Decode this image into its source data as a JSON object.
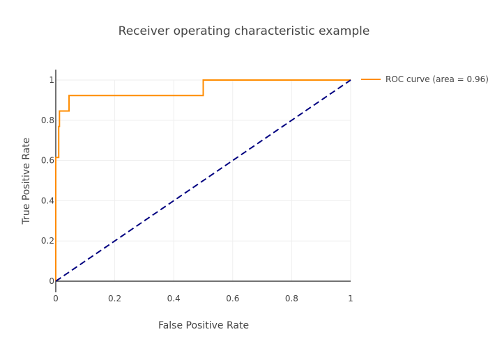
{
  "chart_data": {
    "type": "line",
    "title": "Receiver operating characteristic example",
    "xlabel": "False Positive Rate",
    "ylabel": "True Positive Rate",
    "xlim": [
      0,
      1
    ],
    "ylim": [
      0,
      1
    ],
    "x_ticks": [
      "0",
      "0.2",
      "0.4",
      "0.6",
      "0.8",
      "1"
    ],
    "y_ticks": [
      "0",
      "0.2",
      "0.4",
      "0.6",
      "0.8",
      "1"
    ],
    "grid": true,
    "legend_position": "top-right",
    "series": [
      {
        "name": "ROC curve (area = 0.96)",
        "color": "#ff8c00",
        "dash": "solid",
        "points": [
          [
            0,
            0
          ],
          [
            0,
            0.077
          ],
          [
            0,
            0.615
          ],
          [
            0.01,
            0.615
          ],
          [
            0.01,
            0.769
          ],
          [
            0.0125,
            0.769
          ],
          [
            0.0125,
            0.846
          ],
          [
            0.045,
            0.846
          ],
          [
            0.045,
            0.923
          ],
          [
            0.5,
            0.923
          ],
          [
            0.5,
            1.0
          ],
          [
            1.0,
            1.0
          ]
        ]
      },
      {
        "color": "#000080",
        "dash": "dashed",
        "points": [
          [
            0,
            0
          ],
          [
            1,
            1
          ]
        ]
      }
    ]
  }
}
